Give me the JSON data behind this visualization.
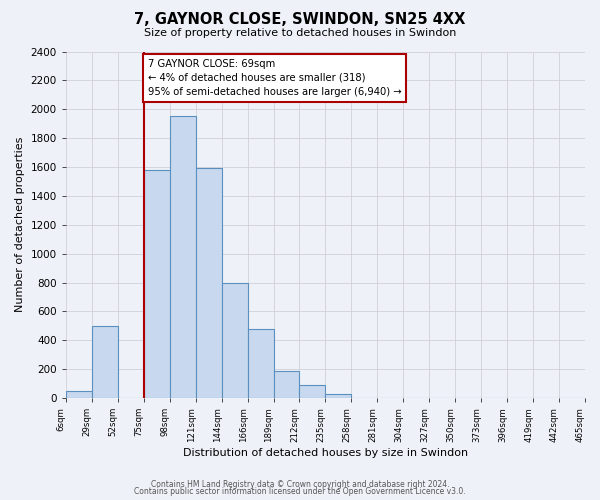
{
  "title": "7, GAYNOR CLOSE, SWINDON, SN25 4XX",
  "subtitle": "Size of property relative to detached houses in Swindon",
  "xlabel": "Distribution of detached houses by size in Swindon",
  "ylabel": "Number of detached properties",
  "bin_edges": [
    0,
    1,
    2,
    3,
    4,
    5,
    6,
    7,
    8,
    9,
    10,
    11,
    12,
    13,
    14,
    15,
    16,
    17,
    18,
    19,
    20
  ],
  "bin_labels": [
    "6sqm",
    "29sqm",
    "52sqm",
    "75sqm",
    "98sqm",
    "121sqm",
    "144sqm",
    "166sqm",
    "189sqm",
    "212sqm",
    "235sqm",
    "258sqm",
    "281sqm",
    "304sqm",
    "327sqm",
    "350sqm",
    "373sqm",
    "396sqm",
    "419sqm",
    "442sqm",
    "465sqm"
  ],
  "bin_values": [
    50,
    500,
    0,
    1580,
    1950,
    1590,
    800,
    480,
    190,
    90,
    30,
    0,
    0,
    0,
    0,
    0,
    0,
    0,
    0,
    0
  ],
  "bar_color": "#c8d9ef",
  "bar_edge_color": "#5a8fc0",
  "vline_x": 3.0,
  "vline_color": "#aa0000",
  "annotation_title": "7 GAYNOR CLOSE: 69sqm",
  "annotation_line1": "← 4% of detached houses are smaller (318)",
  "annotation_line2": "95% of semi-detached houses are larger (6,940) →",
  "annotation_box_color": "#ffffff",
  "annotation_box_edge": "#aa0000",
  "ylim": [
    0,
    2400
  ],
  "yticks": [
    0,
    200,
    400,
    600,
    800,
    1000,
    1200,
    1400,
    1600,
    1800,
    2000,
    2200,
    2400
  ],
  "grid_color": "#d0d0d8",
  "bg_color": "#eef2f8",
  "footer1": "Contains HM Land Registry data © Crown copyright and database right 2024.",
  "footer2": "Contains public sector information licensed under the Open Government Licence v3.0."
}
